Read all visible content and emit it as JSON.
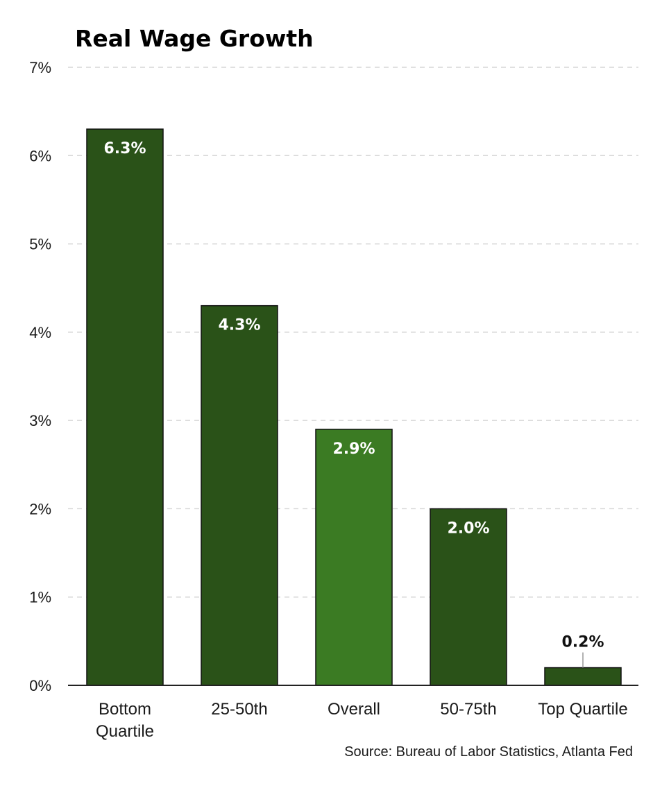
{
  "chart_data": {
    "type": "bar",
    "title": "Real Wage Growth",
    "categories": [
      "Bottom Quartile",
      "25-50th",
      "Overall",
      "50-75th",
      "Top Quartile"
    ],
    "category_label_lines": [
      [
        "Bottom",
        "Quartile"
      ],
      [
        "25-50th"
      ],
      [
        "Overall"
      ],
      [
        "50-75th"
      ],
      [
        "Top Quartile"
      ]
    ],
    "values": [
      6.3,
      4.3,
      2.9,
      2.0,
      0.2
    ],
    "data_labels": [
      "6.3%",
      "4.3%",
      "2.9%",
      "2.0%",
      "0.2%"
    ],
    "bar_colors": [
      "#2a5218",
      "#2a5218",
      "#3b7b23",
      "#2a5218",
      "#2a5218"
    ],
    "ylim": [
      0,
      7
    ],
    "yticks": [
      0,
      1,
      2,
      3,
      4,
      5,
      6,
      7
    ],
    "ytick_labels": [
      "0%",
      "1%",
      "2%",
      "3%",
      "4%",
      "5%",
      "6%",
      "7%"
    ],
    "xlabel": "",
    "ylabel": "",
    "grid": true,
    "source": "Source: Bureau of Labor Statistics, Atlanta Fed"
  }
}
